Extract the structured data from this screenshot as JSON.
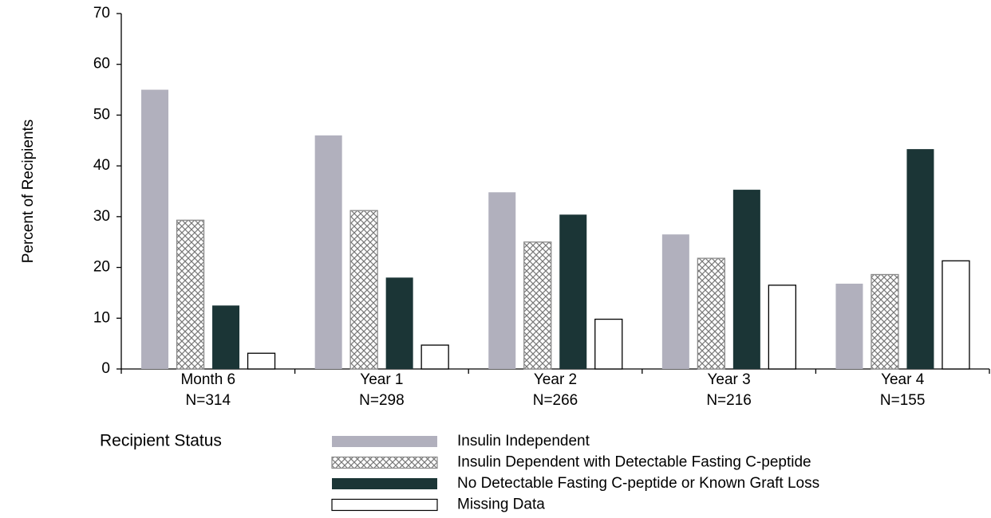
{
  "chart_data": {
    "type": "bar",
    "y_label": "Percent of Recipients",
    "legend_title": "Recipient Status",
    "categories": [
      "Month 6",
      "Year 1",
      "Year 2",
      "Year 3",
      "Year 4"
    ],
    "category_n": [
      "N=314",
      "N=298",
      "N=266",
      "N=216",
      "N=155"
    ],
    "series": [
      {
        "name": "Insulin Independent",
        "color": "#b1b0bd",
        "values": [
          55,
          46,
          34.8,
          26.5,
          16.8
        ]
      },
      {
        "name": "Insulin Dependent with Detectable Fasting C-peptide",
        "color": "#8a8a8a",
        "pattern": "crosshatch",
        "values": [
          29.3,
          31.2,
          25,
          21.8,
          18.6
        ]
      },
      {
        "name": "No Detectable Fasting C-peptide or Known Graft Loss",
        "color": "#1b3536",
        "values": [
          12.5,
          18,
          30.4,
          35.3,
          43.3
        ]
      },
      {
        "name": "Missing Data",
        "color": "#ffffff",
        "values": [
          3.1,
          4.7,
          9.8,
          16.5,
          21.3
        ]
      }
    ],
    "ylim": [
      0,
      70
    ],
    "yticks": [
      0,
      10,
      20,
      30,
      40,
      50,
      60,
      70
    ]
  }
}
